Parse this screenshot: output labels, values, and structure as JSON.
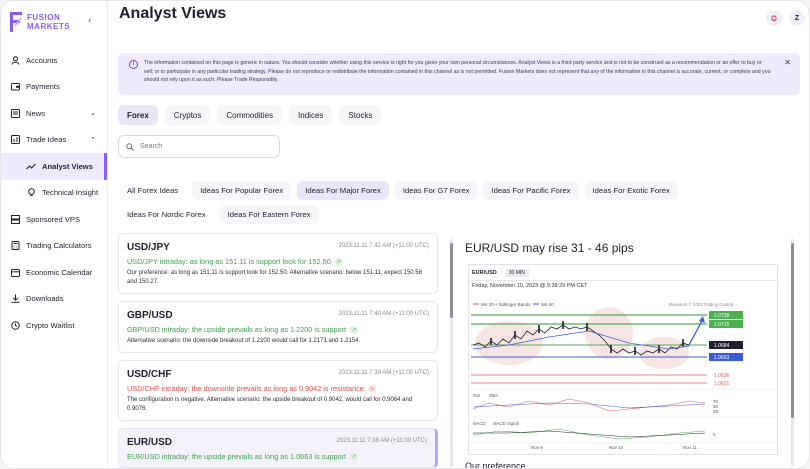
{
  "brand": {
    "line1": "FUSION",
    "line2": "MARKETS",
    "accent": "#8a5cf6"
  },
  "sidebar": {
    "items": [
      {
        "label": "Accounts",
        "icon": "user-icon"
      },
      {
        "label": "Payments",
        "icon": "wallet-icon"
      },
      {
        "label": "News",
        "icon": "newspaper-icon"
      },
      {
        "label": "Trade Ideas",
        "icon": "chart-icon"
      },
      {
        "label": "Analyst Views",
        "icon": "trend-icon"
      },
      {
        "label": "Technical Insight",
        "icon": "bulb-icon"
      },
      {
        "label": "Sponsored VPS",
        "icon": "server-icon"
      },
      {
        "label": "Trading Calculators",
        "icon": "calculator-icon"
      },
      {
        "label": "Economic Calendar",
        "icon": "calendar-icon"
      },
      {
        "label": "Downloads",
        "icon": "download-icon"
      },
      {
        "label": "Crypto Waitlist",
        "icon": "clock-icon"
      }
    ]
  },
  "page": {
    "title": "Analyst Views"
  },
  "top": {
    "avatar_letter": "Z"
  },
  "notice": {
    "text": "The information contained on this page is generic in nature. You should consider whether using this service is right for you given your own personal circumstances. Analyst Views is a third party service and is not to be construed as a recommendation or an offer to buy or sell; or to participate in any particular trading strategy. Please do not reproduce or redistribute the information contained in this channel as is not permitted. Fusion Markets does not represent that any of the information in this channel is accurate, current, or complete and you should not rely upon it as such. Please Trade Responsibly."
  },
  "categories": [
    "Forex",
    "Cryptos",
    "Commodities",
    "Indices",
    "Stocks"
  ],
  "search": {
    "placeholder": "Search"
  },
  "subtabs": [
    "All Forex Ideas",
    "Ideas For Popular Forex",
    "Ideas For Major Forex",
    "Ideas For G7 Forex",
    "Ideas For Pacific Forex",
    "Ideas For Exotic Forex",
    "Ideas For Nordic Forex",
    "Ideas For Eastern Forex"
  ],
  "ideas": [
    {
      "symbol": "USD/JPY",
      "time": "2023.11.11 7:42 AM (+11:00 UTC)",
      "headline": "USD/JPY intraday: as long as 151.11 is support look for 152.50",
      "direction": "up",
      "body": "Our preference: as long as 151.11 is support look for 152.50. Alternative scenario: below 151.11, expect 150.58 and 150.27."
    },
    {
      "symbol": "GBP/USD",
      "time": "2023.11.11 7:40 AM (+11:00 UTC)",
      "headline": "GBP/USD intraday: the upside prevails as long as 1.2200 is support",
      "direction": "up",
      "body": "Alternative scenario: the downside breakout of 1.2200 would call for 1.2171 and 1.2154."
    },
    {
      "symbol": "USD/CHF",
      "time": "2023.11.11 7:39 AM (+11:00 UTC)",
      "headline": "USD/CHF intraday: the downside prevails as long as 0.9042 is resistance",
      "direction": "down",
      "body": "The configuration is negative. Alternative scenario: the upside breakout of 0.9042, would call for 0.9064 and 0.9076."
    },
    {
      "symbol": "EUR/USD",
      "time": "2023.11.11 7:38 AM (+11:00 UTC)",
      "headline": "EUR/USD intraday: the upside prevails as long as 1.0663 is support",
      "direction": "up",
      "body": ""
    }
  ],
  "detail": {
    "title": "EUR/USD may rise 31 - 46 pips",
    "section": "Our preference",
    "chart": {
      "symbol": "EUR/USD",
      "timeframe": "30 MIN",
      "date": "Friday, November 10, 2023 @ 9:38:29 PM CET",
      "legend_bb": "MA 20 + Bollinger Bands",
      "legend_ma": "MA 50",
      "credit": "Research © 2023 Trading Central",
      "levels": [
        "1.0738",
        "1.0715",
        "1.0684",
        "1.0663",
        "1.0636",
        "1.0621"
      ],
      "rsi_labels": [
        "RSI",
        "SMA"
      ],
      "rsi_ticks": [
        "70",
        "50",
        "30"
      ],
      "macd_labels": [
        "MACD",
        "MACD Signal"
      ],
      "macd_tick": "0",
      "x_labels": [
        "Nov 9",
        "Nov 10",
        "Nov 11"
      ]
    }
  }
}
